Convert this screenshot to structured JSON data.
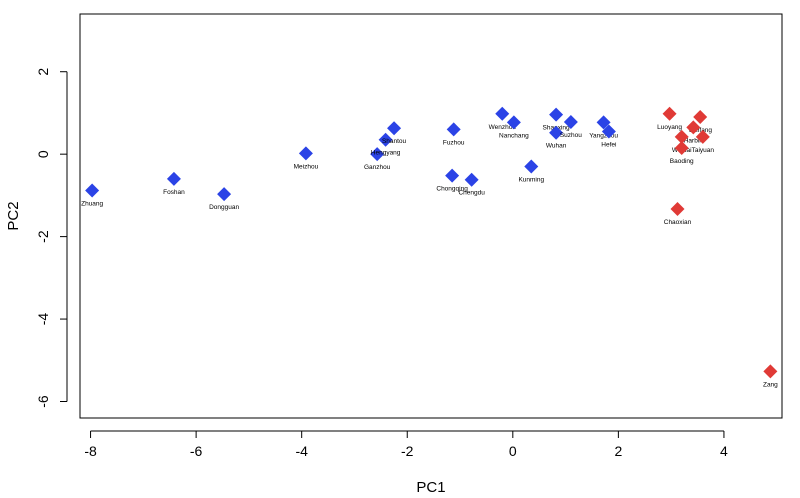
{
  "chart_data": {
    "type": "scatter",
    "title": "",
    "xlabel": "PC1",
    "ylabel": "PC2",
    "xlim": [
      -8.2,
      5.1
    ],
    "ylim": [
      -6.4,
      3.4
    ],
    "x_ticks": [
      -8,
      -6,
      -4,
      -2,
      0,
      2,
      4
    ],
    "y_ticks": [
      -6,
      -4,
      -2,
      0,
      2
    ],
    "marker": "diamond",
    "grid": false,
    "legend": "none",
    "series": [
      {
        "color": "#2b43e6",
        "points": [
          {
            "label": "Zhuang",
            "x": -7.97,
            "y": -0.88
          },
          {
            "label": "Foshan",
            "x": -6.42,
            "y": -0.6
          },
          {
            "label": "Dongguan",
            "x": -5.47,
            "y": -0.97
          },
          {
            "label": "Meizhou",
            "x": -3.92,
            "y": 0.02
          },
          {
            "label": "Ganzhou",
            "x": -2.57,
            "y": 0.0
          },
          {
            "label": "Hengyang",
            "x": -2.41,
            "y": 0.35
          },
          {
            "label": "Shantou",
            "x": -2.25,
            "y": 0.63
          },
          {
            "label": "Fuzhou",
            "x": -1.12,
            "y": 0.6
          },
          {
            "label": "Chongqing",
            "x": -1.15,
            "y": -0.52
          },
          {
            "label": "Chengdu",
            "x": -0.78,
            "y": -0.62
          },
          {
            "label": "Wenzhou",
            "x": -0.2,
            "y": 0.98
          },
          {
            "label": "Nanchang",
            "x": 0.02,
            "y": 0.77
          },
          {
            "label": "Kunming",
            "x": 0.35,
            "y": -0.3
          },
          {
            "label": "Shaoxing",
            "x": 0.82,
            "y": 0.96
          },
          {
            "label": "Wuhan",
            "x": 0.82,
            "y": 0.52
          },
          {
            "label": "Suzhou",
            "x": 1.1,
            "y": 0.78
          },
          {
            "label": "Yangzhou",
            "x": 1.72,
            "y": 0.77
          },
          {
            "label": "Hefei",
            "x": 1.82,
            "y": 0.55
          }
        ]
      },
      {
        "color": "#e03a36",
        "points": [
          {
            "label": "Luoyang",
            "x": 2.97,
            "y": 0.98
          },
          {
            "label": "Weifang",
            "x": 3.55,
            "y": 0.9
          },
          {
            "label": "Harbin",
            "x": 3.42,
            "y": 0.65
          },
          {
            "label": "Weihai",
            "x": 3.2,
            "y": 0.42
          },
          {
            "label": "Taiyuan",
            "x": 3.6,
            "y": 0.42
          },
          {
            "label": "Baoding",
            "x": 3.2,
            "y": 0.15
          },
          {
            "label": "Chaoxian",
            "x": 3.12,
            "y": -1.33
          },
          {
            "label": "Zang",
            "x": 4.88,
            "y": -5.27
          }
        ]
      }
    ]
  }
}
